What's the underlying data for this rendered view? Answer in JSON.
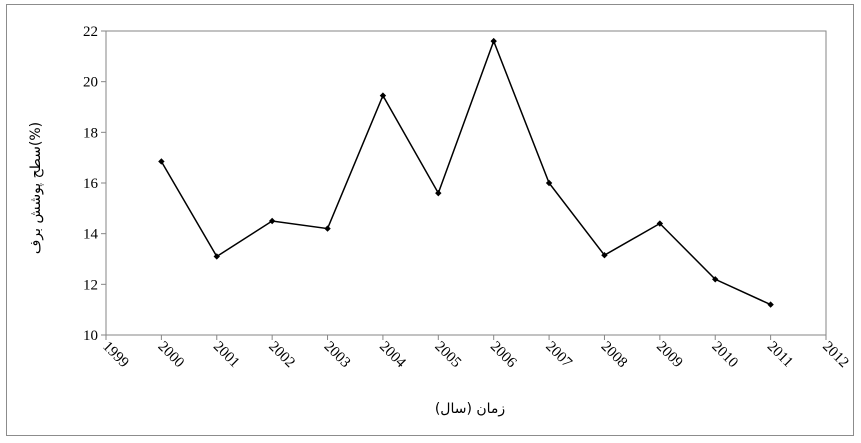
{
  "chart_data": {
    "type": "line",
    "title": "",
    "xlabel": "زمان (سال)",
    "ylabel": "سطح پوشش برف(%)",
    "xlim": [
      1999,
      2012
    ],
    "ylim": [
      10,
      22
    ],
    "x_ticks": [
      1999,
      2000,
      2001,
      2002,
      2003,
      2004,
      2005,
      2006,
      2007,
      2008,
      2009,
      2010,
      2011,
      2012
    ],
    "y_ticks": [
      10,
      12,
      14,
      16,
      18,
      20,
      22
    ],
    "grid": false,
    "legend": "none",
    "series": [
      {
        "x": [
          2000,
          2001,
          2002,
          2003,
          2004,
          2005,
          2006,
          2007,
          2008,
          2009,
          2010,
          2011
        ],
        "values": [
          16.85,
          13.1,
          14.5,
          14.2,
          19.45,
          15.6,
          21.6,
          16.0,
          13.15,
          14.4,
          12.2,
          11.2
        ],
        "color": "#000000",
        "marker": "diamond"
      }
    ]
  }
}
